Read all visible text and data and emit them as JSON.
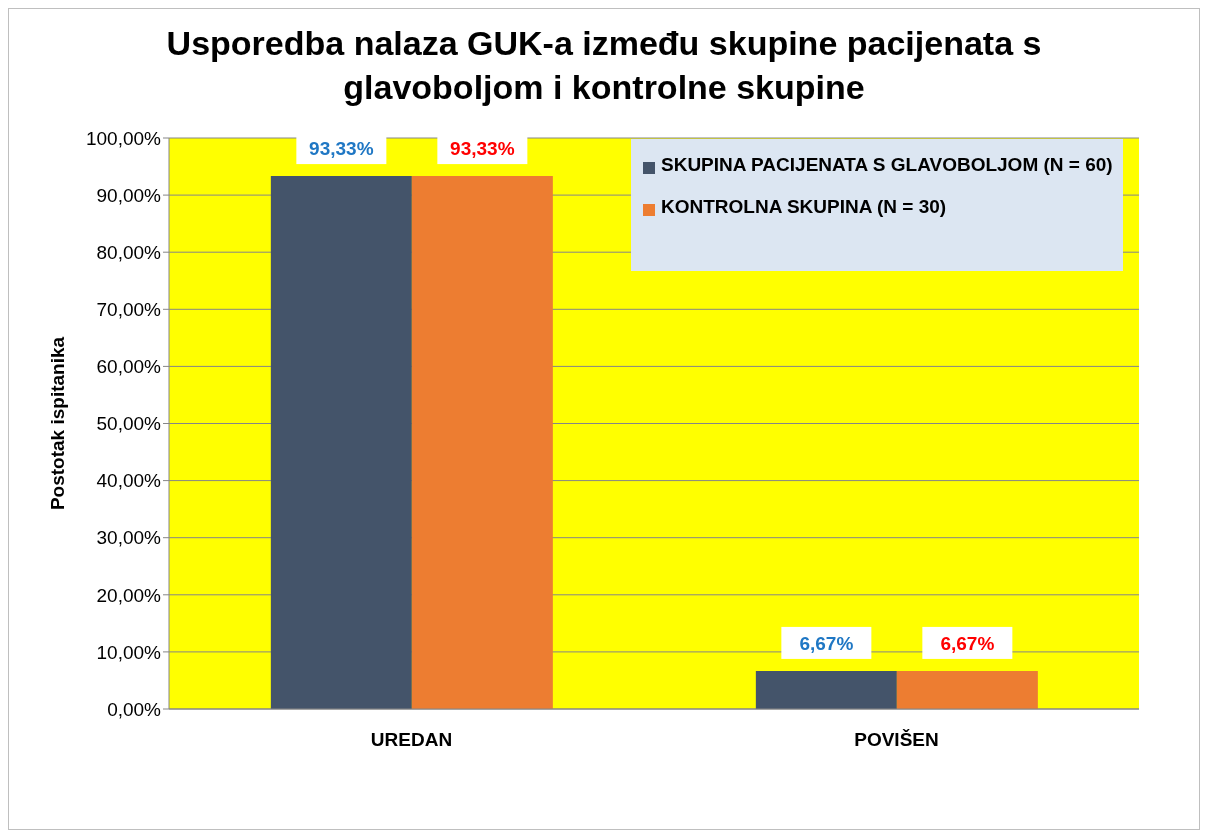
{
  "chart_data": {
    "type": "bar",
    "title": "Usporedba nalaza GUK-a između skupine pacijenata s glavoboljom i kontrolne skupine",
    "ylabel": "Postotak ispitanika",
    "categories": [
      "UREDAN",
      "POVIŠEN"
    ],
    "series": [
      {
        "name": "SKUPINA PACIJENATA S GLAVOBOLJOM (N = 60)",
        "color": "#44546a",
        "values": [
          93.33,
          6.67
        ],
        "value_labels": [
          "93,33%",
          "6,67%"
        ]
      },
      {
        "name": "KONTROLNA SKUPINA (N = 30)",
        "color": "#ed7d31",
        "values": [
          93.33,
          6.67
        ],
        "value_labels": [
          "93,33%",
          "6,67%"
        ]
      }
    ],
    "ylim": [
      0,
      100
    ],
    "yticks": [
      {
        "value": 0,
        "label": "0,00%"
      },
      {
        "value": 10,
        "label": "10,00%"
      },
      {
        "value": 20,
        "label": "20,00%"
      },
      {
        "value": 30,
        "label": "30,00%"
      },
      {
        "value": 40,
        "label": "40,00%"
      },
      {
        "value": 50,
        "label": "50,00%"
      },
      {
        "value": 60,
        "label": "60,00%"
      },
      {
        "value": 70,
        "label": "70,00%"
      },
      {
        "value": 80,
        "label": "80,00%"
      },
      {
        "value": 90,
        "label": "90,00%"
      },
      {
        "value": 100,
        "label": "100,00%"
      }
    ],
    "grid": "y",
    "legend": "top right"
  }
}
